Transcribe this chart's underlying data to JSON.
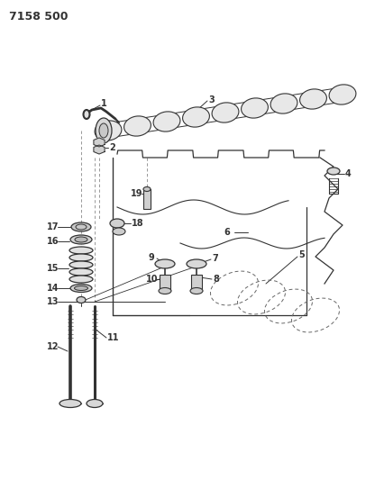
{
  "title": "7158 500",
  "bg_color": "#ffffff",
  "lc": "#333333",
  "fig_width": 4.27,
  "fig_height": 5.33,
  "dpi": 100
}
